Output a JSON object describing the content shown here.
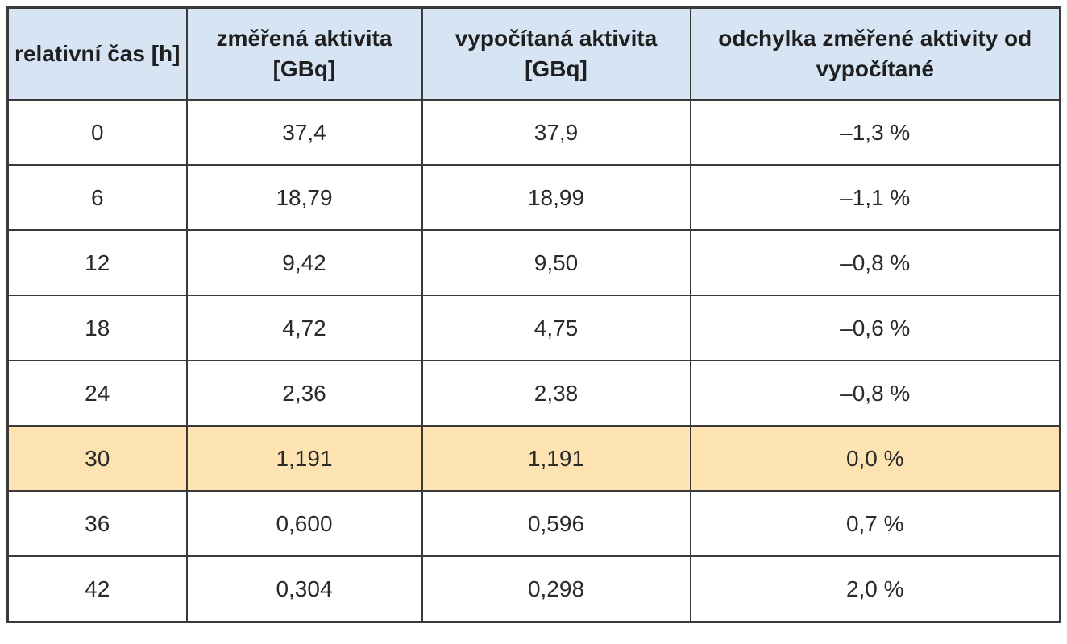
{
  "table": {
    "headers": [
      "relativní čas [h]",
      "změřená aktivita [GBq]",
      "vypočítaná aktivita [GBq]",
      "odchylka změřené aktivity od vypočítané"
    ],
    "highlight_color": "#fde3b2",
    "header_color": "#d6e4f4",
    "rows": [
      [
        "0",
        "37,4",
        "37,9",
        "–1,3 %"
      ],
      [
        "6",
        "18,79",
        "18,99",
        "–1,1 %"
      ],
      [
        "12",
        "9,42",
        "9,50",
        "–0,8 %"
      ],
      [
        "18",
        "4,72",
        "4,75",
        "–0,6 %"
      ],
      [
        "24",
        "2,36",
        "2,38",
        "–0,8 %"
      ],
      [
        "30",
        "1,191",
        "1,191",
        "0,0 %"
      ],
      [
        "36",
        "0,600",
        "0,596",
        "0,7 %"
      ],
      [
        "42",
        "0,304",
        "0,298",
        "2,0 %"
      ]
    ]
  }
}
